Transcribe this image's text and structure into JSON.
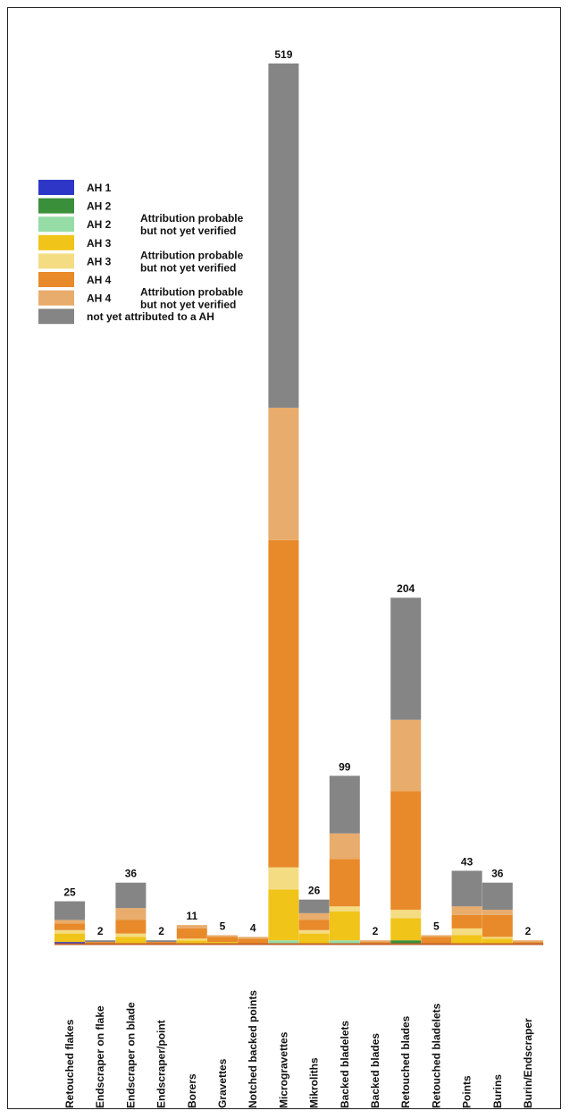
{
  "legend": [
    {
      "key": "ah1",
      "label": "AH 1",
      "note": "",
      "color": "#2e36c8"
    },
    {
      "key": "ah2",
      "label": "AH 2",
      "note": "",
      "color": "#3a8f3a"
    },
    {
      "key": "ah2p",
      "label": "AH 2",
      "note": "Attribution probable but not yet verified",
      "color": "#96dca6"
    },
    {
      "key": "ah3",
      "label": "AH 3",
      "note": "",
      "color": "#f0c419"
    },
    {
      "key": "ah3p",
      "label": "AH 3",
      "note": "Attribution probable but not yet verified",
      "color": "#f4dc82"
    },
    {
      "key": "ah4",
      "label": "AH 4",
      "note": "",
      "color": "#e88a2a"
    },
    {
      "key": "ah4p",
      "label": "AH 4",
      "note": "Attribution probable but not yet verified",
      "color": "#e8ac6c"
    },
    {
      "key": "na",
      "label": "not yet attributed to a AH",
      "note": "",
      "color": "#858585"
    }
  ],
  "chart_data": {
    "type": "bar",
    "stacked": true,
    "ylim": [
      0,
      519
    ],
    "categories": [
      "Retouched flakes",
      "Endscraper on flake",
      "Endscraper on blade",
      "Endscraper/point",
      "Borers",
      "Gravettes",
      "Notched backed points",
      "Microgravettes",
      "Mikroliths",
      "Backed bladelets",
      "Backed blades",
      "Retouched blades",
      "Retouched bladelets",
      "Points",
      "Burins",
      "Burin/Endscraper"
    ],
    "totals": [
      25,
      2,
      36,
      2,
      11,
      5,
      4,
      519,
      26,
      99,
      2,
      204,
      5,
      43,
      36,
      2
    ],
    "series": [
      {
        "name": "AH 1",
        "values": [
          1,
          0,
          0,
          0,
          0,
          0,
          0,
          0,
          0,
          0,
          0,
          0,
          0,
          0,
          0,
          0
        ]
      },
      {
        "name": "AH 2",
        "values": [
          0,
          0,
          0,
          0,
          0,
          0,
          0,
          0,
          0,
          0,
          0,
          2,
          0,
          0,
          0,
          0
        ]
      },
      {
        "name": "AH 2 Attribution probable but not yet verified",
        "values": [
          0,
          0,
          0,
          0,
          0,
          0,
          0,
          2,
          0,
          2,
          0,
          0,
          0,
          0,
          0,
          0
        ]
      },
      {
        "name": "AH 3",
        "values": [
          5,
          0,
          4,
          0,
          2,
          1,
          0,
          30,
          6,
          17,
          0,
          13,
          0,
          5,
          3,
          0
        ]
      },
      {
        "name": "AH 3 Attribution probable but not yet verified",
        "values": [
          2,
          0,
          2,
          0,
          1,
          0,
          0,
          13,
          2,
          3,
          0,
          5,
          0,
          4,
          1,
          0
        ]
      },
      {
        "name": "AH 4",
        "values": [
          4,
          1,
          8,
          1,
          6,
          3,
          3,
          193,
          6,
          28,
          1,
          70,
          4,
          8,
          13,
          1
        ]
      },
      {
        "name": "AH 4 Attribution probable but not yet verified",
        "values": [
          2,
          0,
          7,
          0,
          2,
          1,
          1,
          78,
          4,
          15,
          1,
          42,
          1,
          5,
          3,
          1
        ]
      },
      {
        "name": "not yet attributed to a AH",
        "values": [
          11,
          1,
          15,
          1,
          0,
          0,
          0,
          203,
          8,
          34,
          0,
          72,
          0,
          21,
          16,
          0
        ]
      }
    ]
  }
}
